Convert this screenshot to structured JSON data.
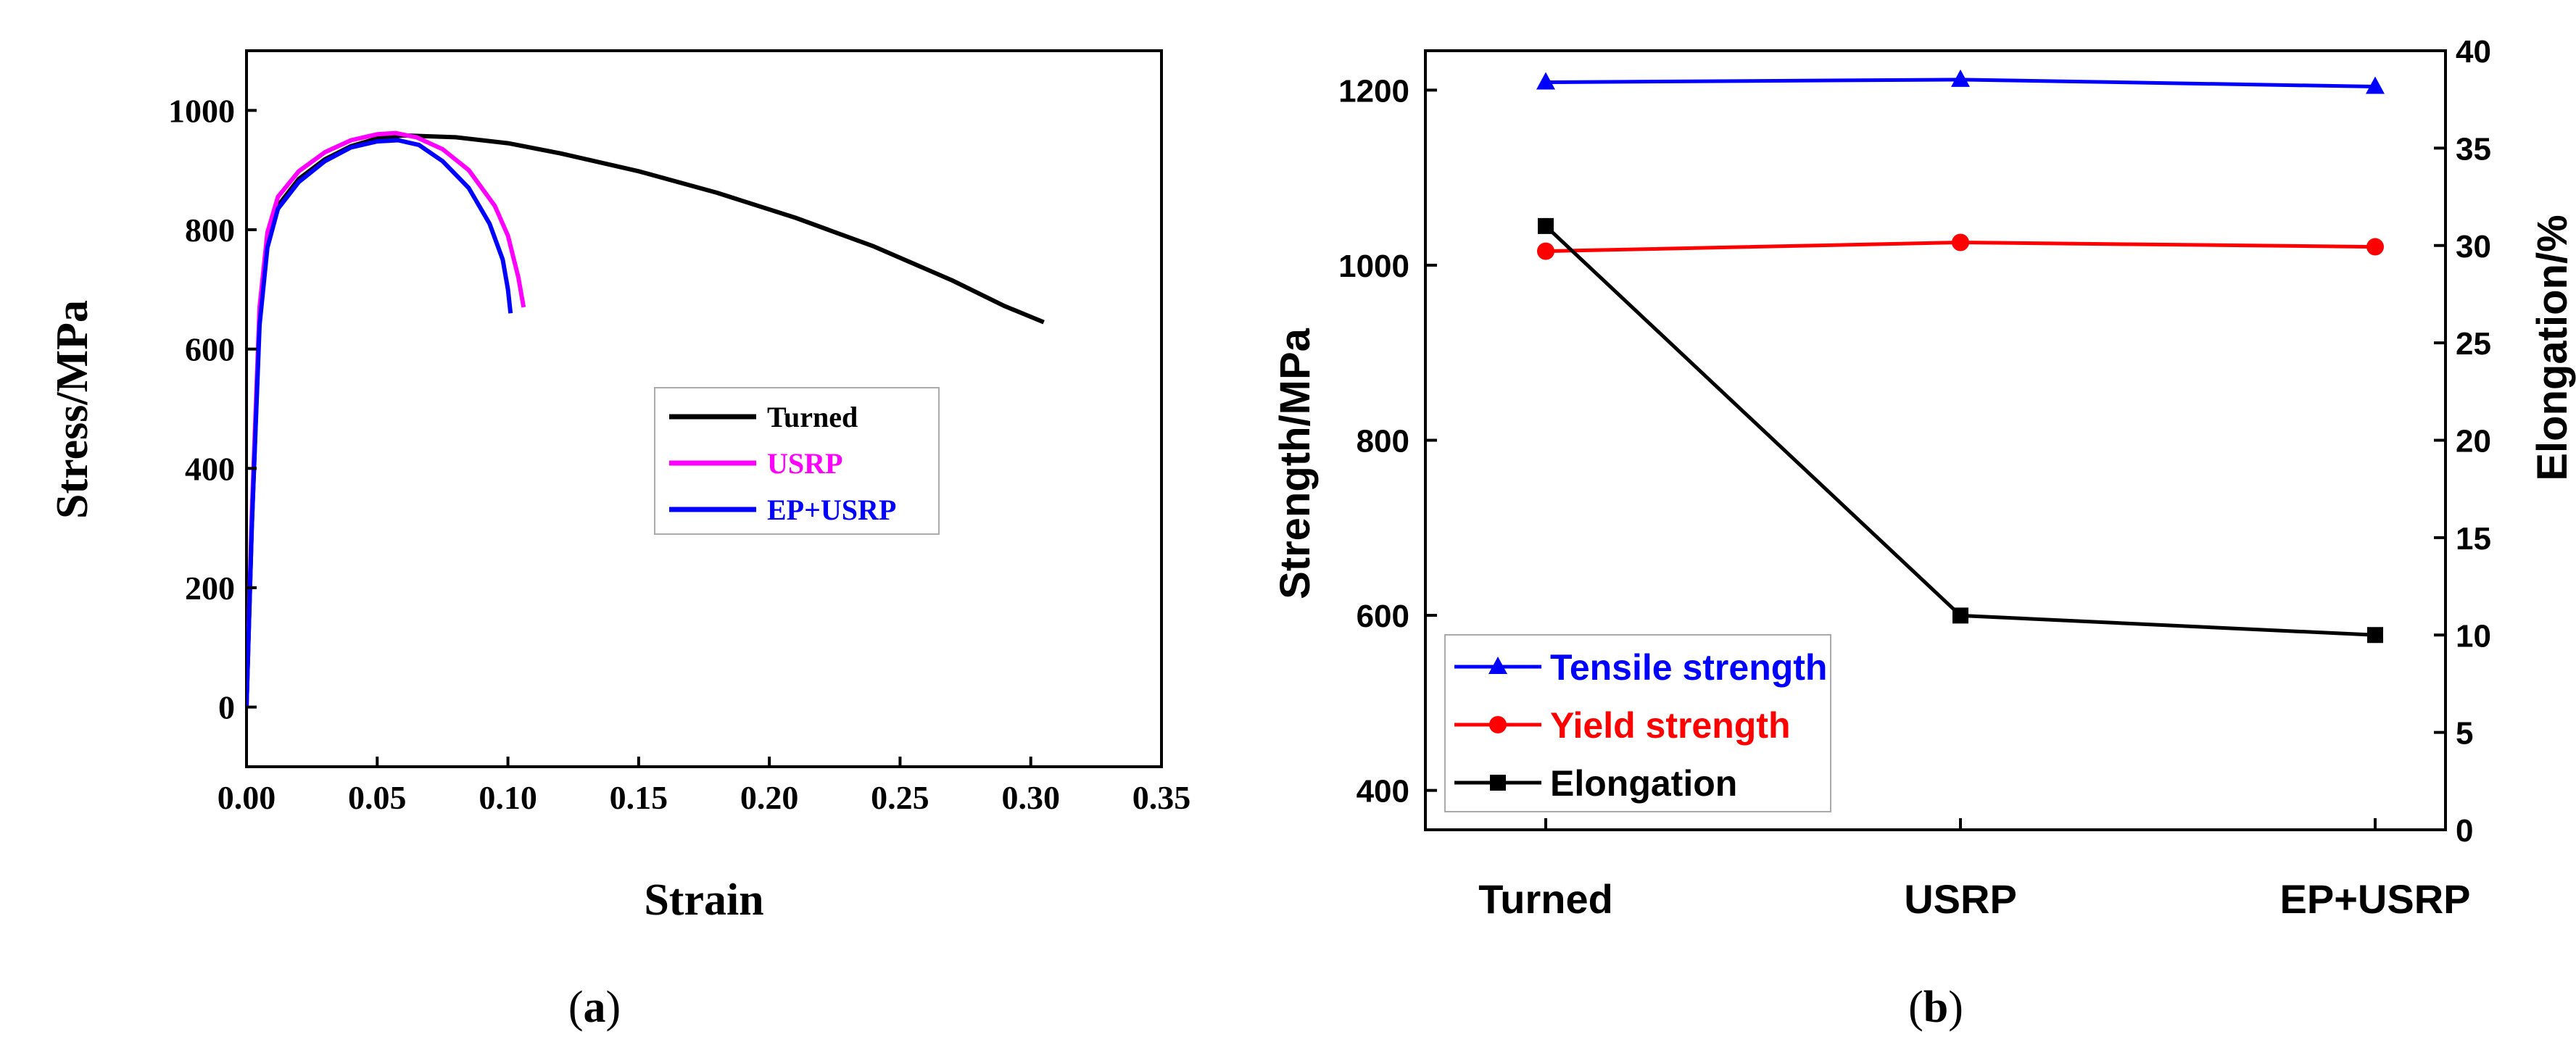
{
  "chart_data": [
    {
      "panel": "a",
      "type": "line",
      "caption_prefix": "(",
      "caption_letter": "a",
      "caption_suffix": ")",
      "xlabel": "Strain",
      "ylabel": "Stress/MPa",
      "xlim": [
        0.0,
        0.35
      ],
      "ylim": [
        -100,
        1100
      ],
      "xticks": [
        "0.00",
        "0.05",
        "0.10",
        "0.15",
        "0.20",
        "0.25",
        "0.30",
        "0.35"
      ],
      "yticks": [
        "0",
        "200",
        "400",
        "600",
        "800",
        "1000"
      ],
      "grid": false,
      "legend_position": "center-right",
      "series": [
        {
          "name": "Turned",
          "color": "#000000",
          "x": [
            0.0,
            0.002,
            0.005,
            0.008,
            0.012,
            0.02,
            0.03,
            0.04,
            0.05,
            0.06,
            0.08,
            0.1,
            0.12,
            0.15,
            0.18,
            0.21,
            0.24,
            0.27,
            0.29,
            0.305
          ],
          "y": [
            0,
            300,
            650,
            780,
            840,
            885,
            918,
            940,
            953,
            958,
            955,
            945,
            928,
            898,
            862,
            820,
            772,
            715,
            672,
            645
          ]
        },
        {
          "name": "USRP",
          "color": "#ff00ff",
          "x": [
            0.0,
            0.002,
            0.005,
            0.008,
            0.012,
            0.02,
            0.03,
            0.04,
            0.05,
            0.057,
            0.065,
            0.075,
            0.085,
            0.095,
            0.1,
            0.104,
            0.106
          ],
          "y": [
            0,
            320,
            670,
            795,
            855,
            898,
            930,
            950,
            960,
            962,
            955,
            935,
            900,
            840,
            790,
            720,
            670
          ]
        },
        {
          "name": "EP+USRP",
          "color": "#0000ff",
          "x": [
            0.0,
            0.002,
            0.005,
            0.008,
            0.012,
            0.02,
            0.03,
            0.04,
            0.05,
            0.058,
            0.066,
            0.075,
            0.085,
            0.093,
            0.098,
            0.1,
            0.101
          ],
          "y": [
            0,
            300,
            640,
            770,
            835,
            880,
            915,
            938,
            948,
            950,
            942,
            915,
            870,
            810,
            750,
            700,
            660
          ]
        }
      ]
    },
    {
      "panel": "b",
      "type": "line",
      "caption_prefix": "(",
      "caption_letter": "b",
      "caption_suffix": ")",
      "categories": [
        "Turned",
        "USRP",
        "EP+USRP"
      ],
      "ylabel": "Strength/MPa",
      "y2label": "Elongation/%",
      "ylim": [
        355,
        1245
      ],
      "y2lim": [
        0,
        40
      ],
      "yticks": [
        "400",
        "600",
        "800",
        "1000",
        "1200"
      ],
      "y2ticks": [
        "0",
        "5",
        "10",
        "15",
        "20",
        "25",
        "30",
        "35",
        "40"
      ],
      "grid": false,
      "legend_position": "bottom-left",
      "series": [
        {
          "name": "Tensile strength",
          "axis": "left",
          "marker": "triangle",
          "color": "#0000ff",
          "values": [
            1209,
            1212,
            1204
          ]
        },
        {
          "name": "Yield strength",
          "axis": "left",
          "marker": "circle",
          "color": "#ff0000",
          "values": [
            1016,
            1026,
            1021
          ]
        },
        {
          "name": "Elongation",
          "axis": "right",
          "marker": "square",
          "color": "#000000",
          "values": [
            31,
            11,
            10
          ]
        }
      ]
    }
  ]
}
